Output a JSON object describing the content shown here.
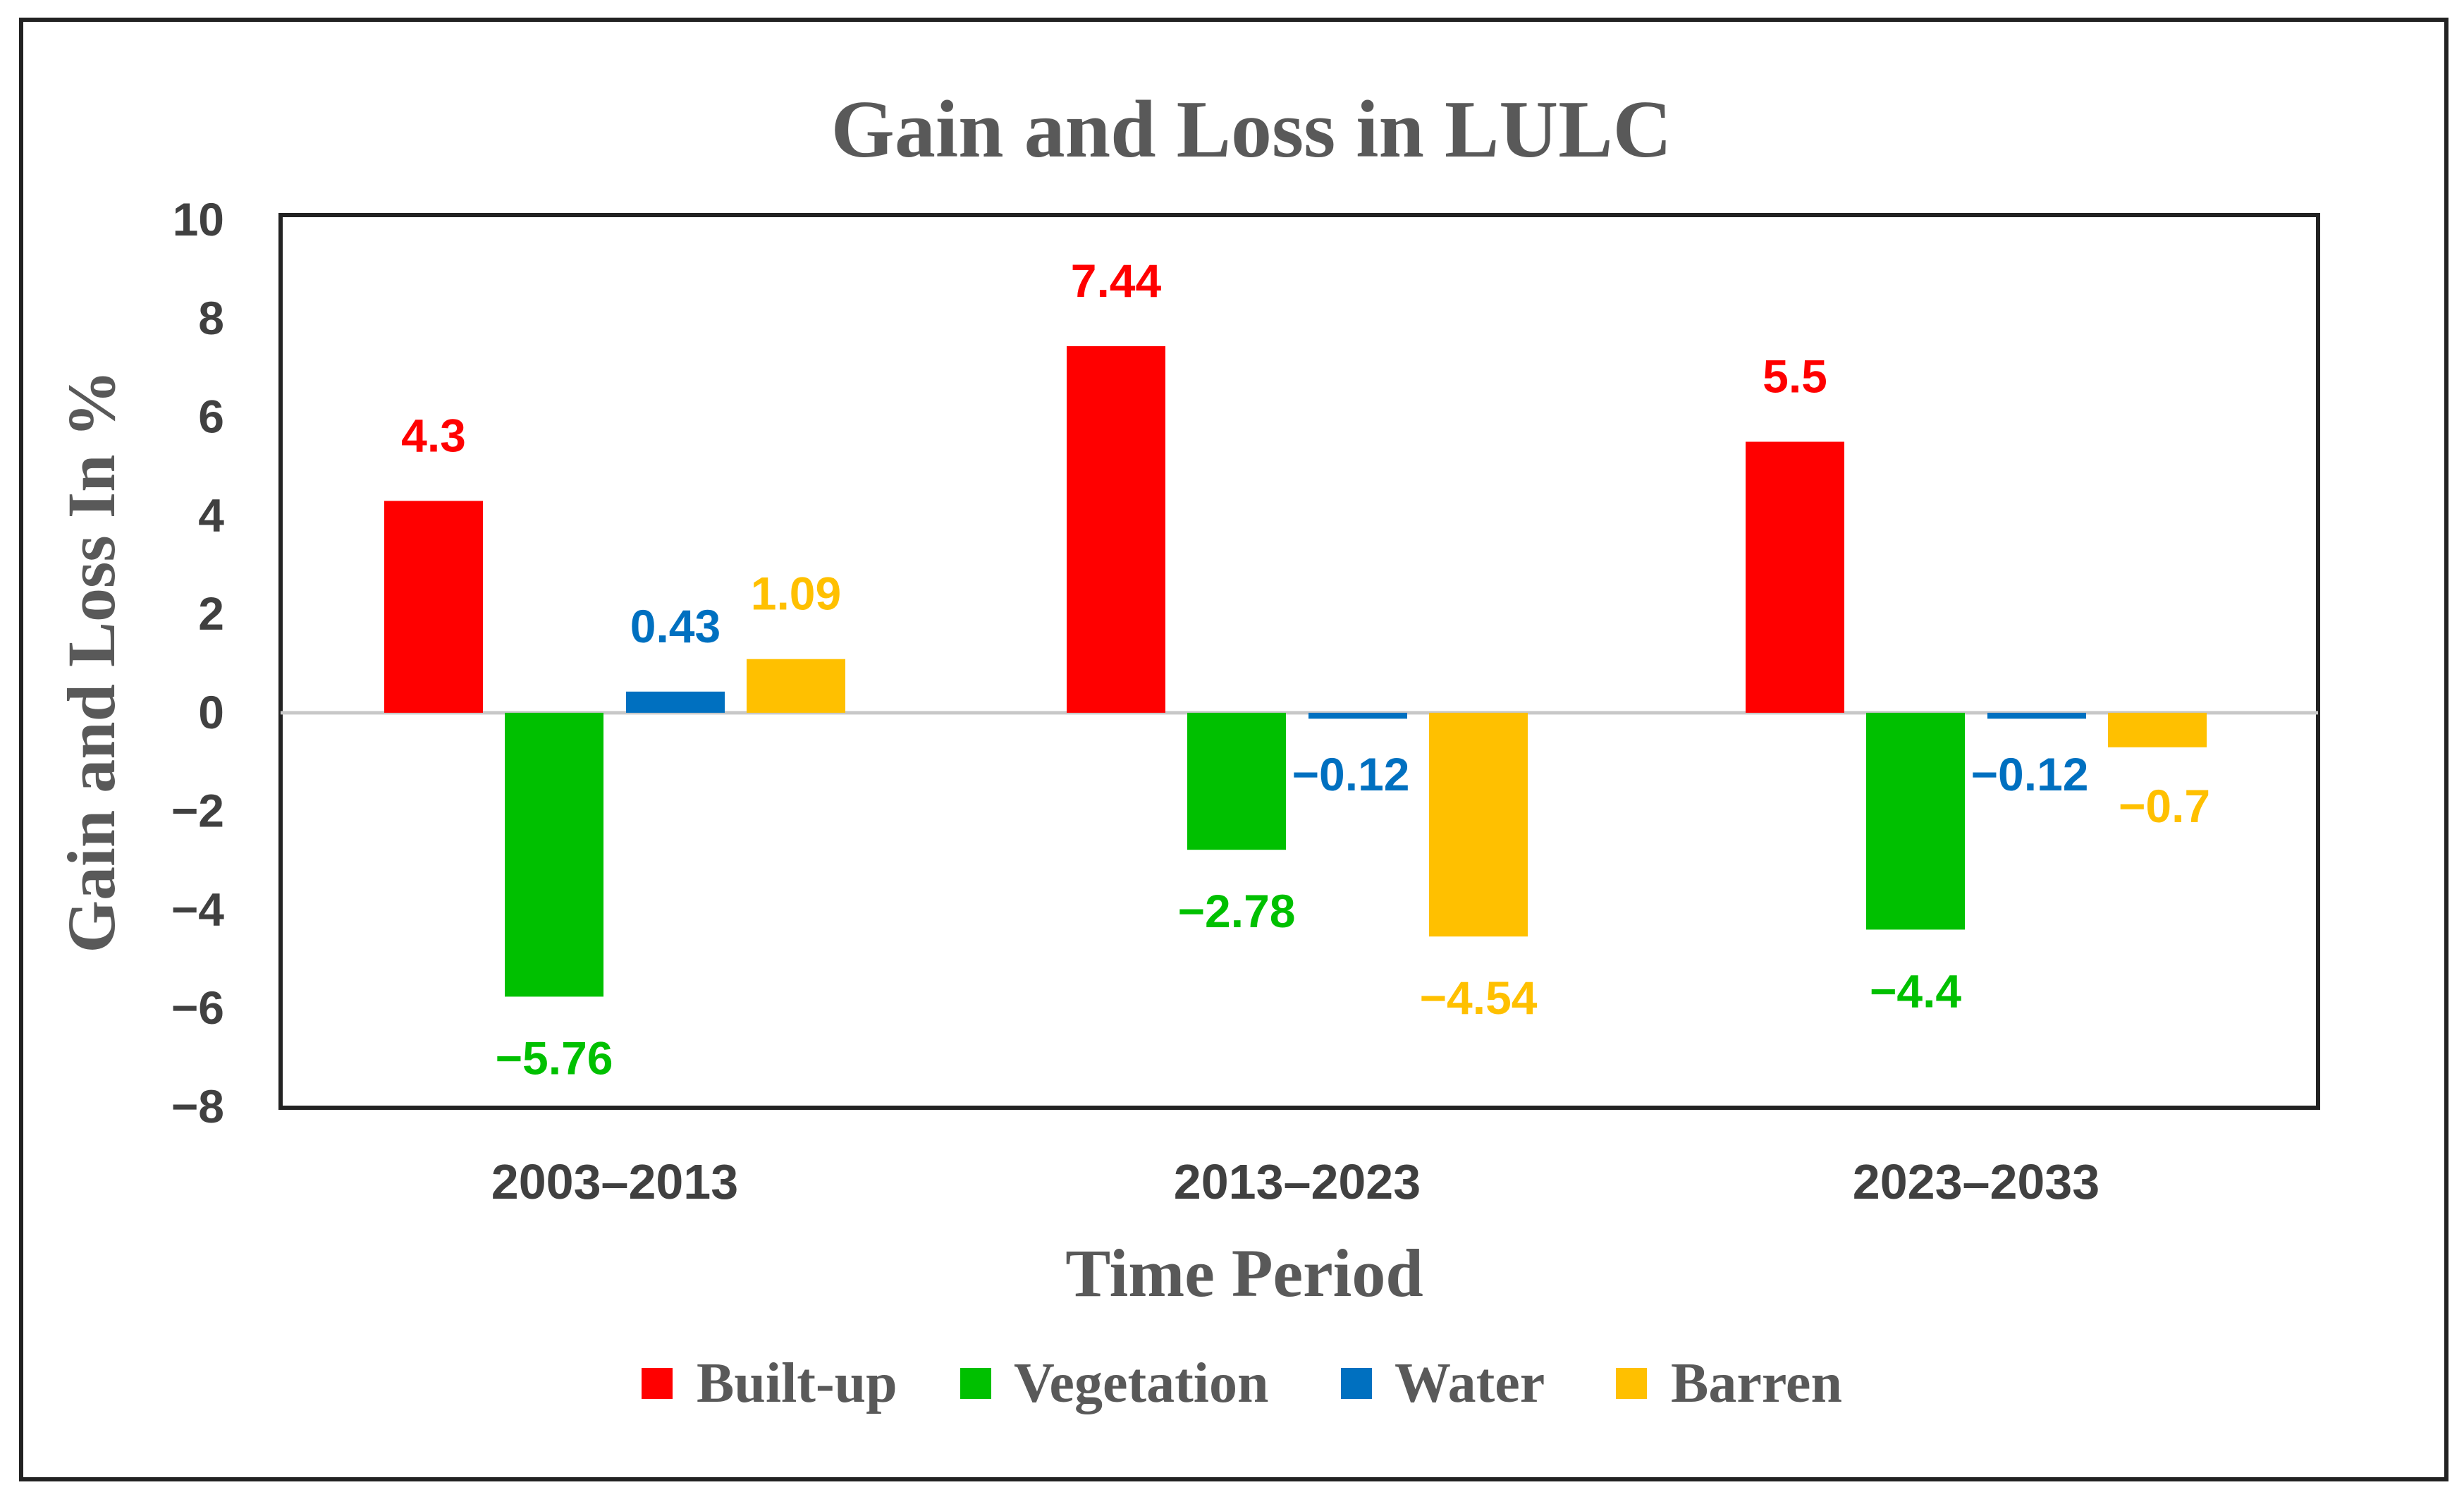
{
  "chart_data": {
    "type": "bar",
    "title": "Gain and Loss in LULC",
    "xlabel": "Time Period",
    "ylabel": "Gain and Loss In %",
    "ylim": [
      -8,
      10
    ],
    "yticks": [
      "10",
      "8",
      "6",
      "4",
      "2",
      "0",
      "−2",
      "−4",
      "−6",
      "−8"
    ],
    "ytick_values": [
      10,
      8,
      6,
      4,
      2,
      0,
      -2,
      -4,
      -6,
      -8
    ],
    "categories": [
      "2003–2013",
      "2013–2023",
      "2023–2033"
    ],
    "legend_position": "bottom",
    "series": [
      {
        "name": "Built-up",
        "color": "#ff0000",
        "values": [
          4.3,
          7.44,
          5.5
        ],
        "labels": [
          "4.3",
          "7.44",
          "5.5"
        ]
      },
      {
        "name": "Vegetation",
        "color": "#00c000",
        "values": [
          -5.76,
          -2.78,
          -4.4
        ],
        "labels": [
          "−5.76",
          "−2.78",
          "−4.4"
        ]
      },
      {
        "name": "Water",
        "color": "#0070c0",
        "values": [
          0.43,
          -0.12,
          -0.12
        ],
        "labels": [
          "0.43",
          "−0.12",
          "−0.12"
        ]
      },
      {
        "name": "Barren",
        "color": "#ffc000",
        "values": [
          1.09,
          -4.54,
          -0.7
        ],
        "labels": [
          "1.09",
          "−4.54",
          "−0.7"
        ]
      }
    ]
  }
}
